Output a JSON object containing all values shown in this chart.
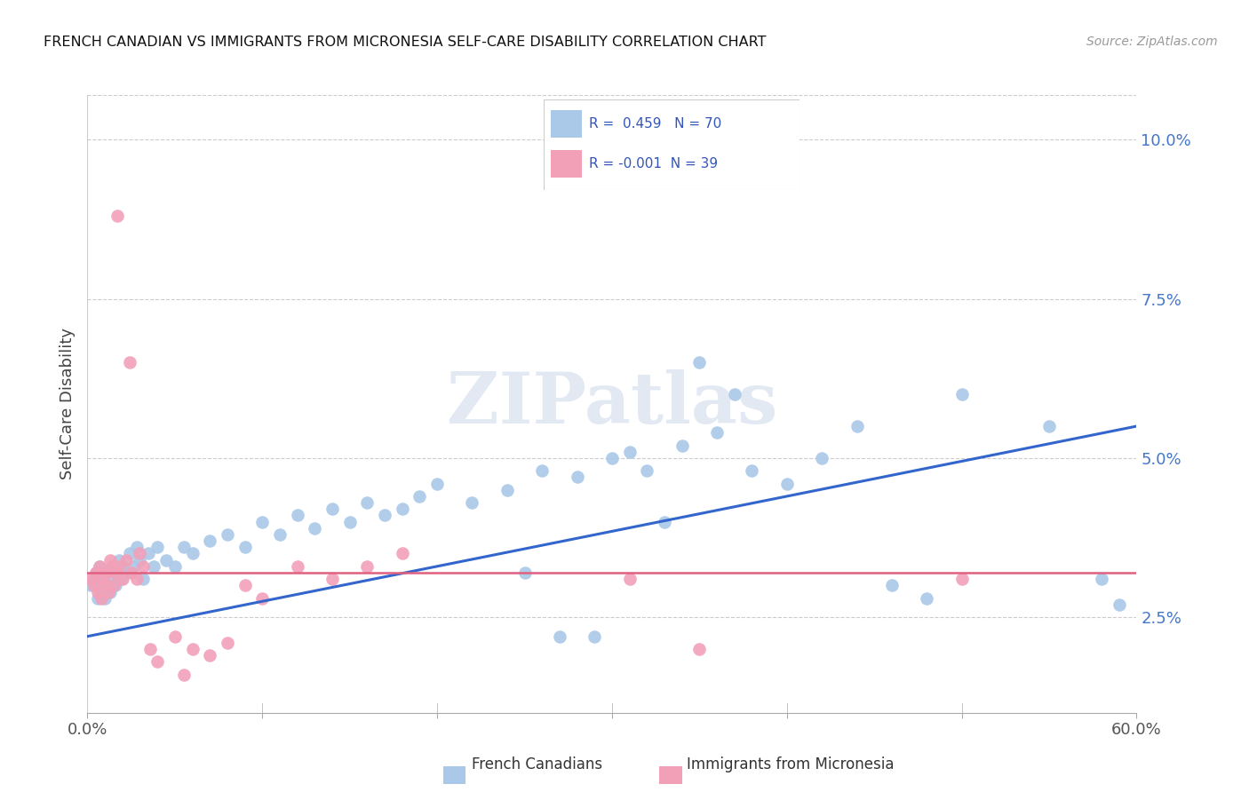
{
  "title": "FRENCH CANADIAN VS IMMIGRANTS FROM MICRONESIA SELF-CARE DISABILITY CORRELATION CHART",
  "source": "Source: ZipAtlas.com",
  "ylabel": "Self-Care Disability",
  "ytick_vals": [
    0.025,
    0.05,
    0.075,
    0.1
  ],
  "xlim": [
    0.0,
    0.6
  ],
  "ylim": [
    0.01,
    0.107
  ],
  "blue_color": "#aac8e8",
  "pink_color": "#f2a0b8",
  "blue_line_color": "#3366cc",
  "pink_line_color": "#e06080",
  "blue_line_y0": 0.022,
  "blue_line_y1": 0.055,
  "pink_line_y": 0.032,
  "watermark": "ZIPatlas",
  "legend_r_blue": "R =  0.459",
  "legend_n_blue": "N = 70",
  "legend_r_pink": "R = -0.001",
  "legend_n_pink": "N = 39",
  "blue_x": [
    0.002,
    0.004,
    0.005,
    0.006,
    0.007,
    0.008,
    0.009,
    0.01,
    0.011,
    0.012,
    0.013,
    0.014,
    0.015,
    0.016,
    0.017,
    0.018,
    0.019,
    0.02,
    0.022,
    0.024,
    0.026,
    0.028,
    0.03,
    0.032,
    0.035,
    0.038,
    0.04,
    0.045,
    0.05,
    0.055,
    0.06,
    0.07,
    0.08,
    0.09,
    0.1,
    0.11,
    0.12,
    0.13,
    0.14,
    0.15,
    0.16,
    0.17,
    0.18,
    0.19,
    0.2,
    0.22,
    0.24,
    0.26,
    0.28,
    0.3,
    0.32,
    0.34,
    0.36,
    0.38,
    0.4,
    0.42,
    0.44,
    0.46,
    0.48,
    0.5,
    0.35,
    0.37,
    0.25,
    0.27,
    0.29,
    0.31,
    0.33,
    0.55,
    0.58,
    0.59
  ],
  "blue_y": [
    0.03,
    0.031,
    0.032,
    0.028,
    0.033,
    0.029,
    0.031,
    0.028,
    0.032,
    0.03,
    0.029,
    0.033,
    0.031,
    0.03,
    0.032,
    0.034,
    0.031,
    0.033,
    0.032,
    0.035,
    0.033,
    0.036,
    0.034,
    0.031,
    0.035,
    0.033,
    0.036,
    0.034,
    0.033,
    0.036,
    0.035,
    0.037,
    0.038,
    0.036,
    0.04,
    0.038,
    0.041,
    0.039,
    0.042,
    0.04,
    0.043,
    0.041,
    0.042,
    0.044,
    0.046,
    0.043,
    0.045,
    0.048,
    0.047,
    0.05,
    0.048,
    0.052,
    0.054,
    0.048,
    0.046,
    0.05,
    0.055,
    0.03,
    0.028,
    0.06,
    0.065,
    0.06,
    0.032,
    0.022,
    0.022,
    0.051,
    0.04,
    0.055,
    0.031,
    0.027
  ],
  "pink_x": [
    0.002,
    0.004,
    0.005,
    0.006,
    0.007,
    0.008,
    0.009,
    0.01,
    0.011,
    0.012,
    0.013,
    0.014,
    0.015,
    0.016,
    0.018,
    0.02,
    0.022,
    0.025,
    0.028,
    0.032,
    0.036,
    0.04,
    0.05,
    0.06,
    0.07,
    0.08,
    0.09,
    0.1,
    0.12,
    0.14,
    0.16,
    0.18,
    0.31,
    0.35,
    0.5,
    0.017,
    0.024,
    0.03,
    0.055
  ],
  "pink_y": [
    0.031,
    0.03,
    0.032,
    0.029,
    0.033,
    0.028,
    0.031,
    0.03,
    0.032,
    0.029,
    0.034,
    0.033,
    0.03,
    0.032,
    0.033,
    0.031,
    0.034,
    0.032,
    0.031,
    0.033,
    0.02,
    0.018,
    0.022,
    0.02,
    0.019,
    0.021,
    0.03,
    0.028,
    0.033,
    0.031,
    0.033,
    0.035,
    0.031,
    0.02,
    0.031,
    0.088,
    0.065,
    0.035,
    0.016
  ]
}
